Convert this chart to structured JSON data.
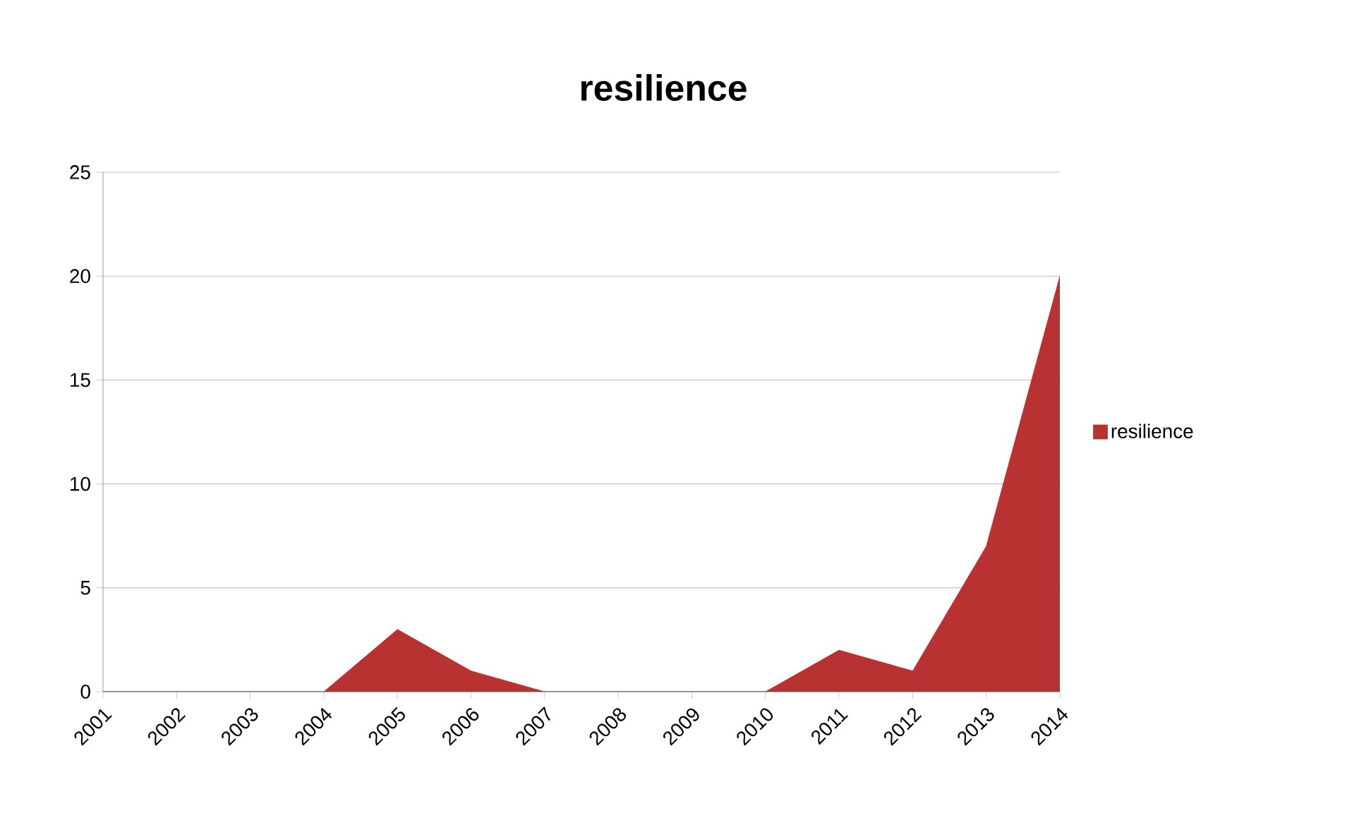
{
  "chart_data": {
    "type": "area",
    "title": "resilience",
    "categories": [
      "2001",
      "2002",
      "2003",
      "2004",
      "2005",
      "2006",
      "2007",
      "2008",
      "2009",
      "2010",
      "2011",
      "2012",
      "2013",
      "2014"
    ],
    "series": [
      {
        "name": "resilience",
        "color": "#b83232",
        "values": [
          0,
          0,
          0,
          0,
          3,
          1,
          0,
          0,
          0,
          0,
          2,
          1,
          7,
          20
        ]
      }
    ],
    "ylim": [
      0,
      25
    ],
    "yticks": [
      0,
      5,
      10,
      15,
      20,
      25
    ],
    "grid": "y",
    "legend": "right",
    "marker": "none"
  }
}
